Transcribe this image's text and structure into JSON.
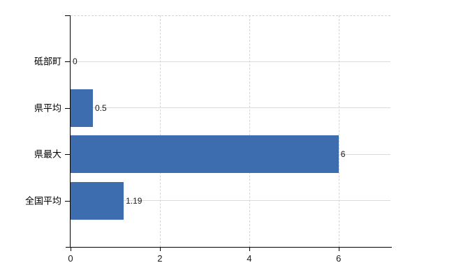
{
  "chart_data": {
    "type": "bar",
    "orientation": "horizontal",
    "title": "",
    "xlabel": "",
    "ylabel": "",
    "categories": [
      "砥部町",
      "県平均",
      "県最大",
      "全国平均"
    ],
    "values": [
      0,
      0.5,
      6,
      1.19
    ],
    "value_labels": [
      "0",
      "0.5",
      "6",
      "1.19"
    ],
    "x_ticks": [
      0,
      2,
      4,
      6
    ],
    "x_tick_labels": [
      "0",
      "2",
      "4",
      "6"
    ],
    "xlim": [
      0,
      7.16
    ],
    "grid": true,
    "legend": false,
    "colors": {
      "bar": "#3d6dae",
      "axis": "#000000",
      "h_gridline": "#d6dcd6",
      "v_gridline": "#d5d5d5",
      "text": "#1a1a1a",
      "background": "#ffffff"
    }
  }
}
